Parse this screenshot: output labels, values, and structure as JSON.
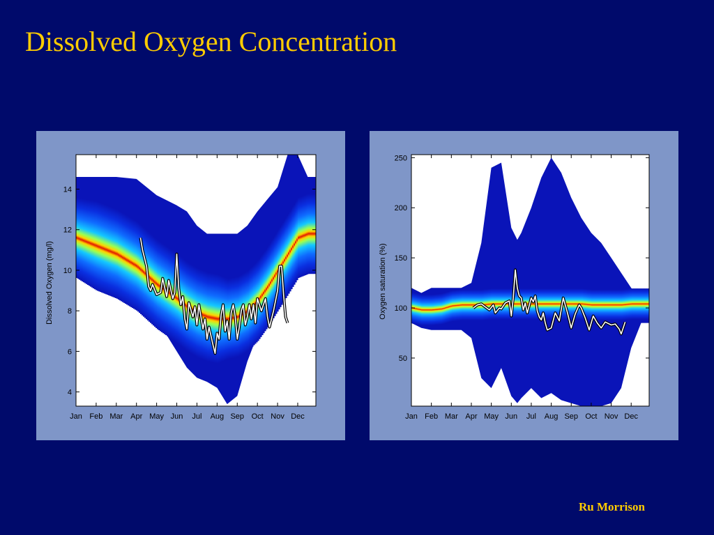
{
  "slide": {
    "title": "Dissolved Oxygen Concentration",
    "author": "Ru Morrison",
    "background_color": "#000a6b",
    "title_color": "#ffcc00",
    "panel_color": "#7f96c8"
  },
  "chart_data": [
    {
      "type": "area",
      "xlabel": "",
      "ylabel": "Dissolved Oxygen (mg/l)",
      "categories": [
        "Jan",
        "Feb",
        "Mar",
        "Apr",
        "May",
        "Jun",
        "Jul",
        "Aug",
        "Sep",
        "Oct",
        "Nov",
        "Dec"
      ],
      "yticks": [
        4,
        6,
        8,
        10,
        12,
        14
      ],
      "ylim": [
        3.3,
        15.7
      ],
      "xlim": [
        1,
        12.9
      ],
      "band_x": [
        1,
        2,
        3,
        4,
        5,
        6,
        6.5,
        7,
        7.5,
        8,
        8.5,
        9,
        9.5,
        10,
        10.5,
        11,
        11.5,
        12,
        12.5,
        12.9
      ],
      "band_upper": [
        14.6,
        14.6,
        14.6,
        14.5,
        13.7,
        13.2,
        12.9,
        12.2,
        11.8,
        11.8,
        11.8,
        11.8,
        12.2,
        12.9,
        13.5,
        14.1,
        15.7,
        15.7,
        14.6,
        14.6
      ],
      "band_lower": [
        10.4,
        10.3,
        9.8,
        9.0,
        7.6,
        6.0,
        5.2,
        4.7,
        4.5,
        4.2,
        3.4,
        3.8,
        5.5,
        6.8,
        7.6,
        8.2,
        8.8,
        10.0,
        10.4,
        10.4
      ],
      "median_y": [
        11.6,
        11.2,
        10.8,
        10.2,
        9.3,
        8.6,
        8.2,
        7.9,
        7.7,
        7.6,
        7.6,
        7.7,
        8.0,
        8.5,
        9.2,
        10.0,
        10.8,
        11.6,
        11.8,
        11.8
      ],
      "halfwidth": [
        0.9,
        1.0,
        1.0,
        1.0,
        1.0,
        1.0,
        1.0,
        1.0,
        1.0,
        1.0,
        0.9,
        0.9,
        0.9,
        0.9,
        0.9,
        0.9,
        0.9,
        0.9,
        0.9,
        0.9
      ],
      "series": [
        {
          "x": [
            4.2,
            4.3,
            4.5,
            4.6,
            4.7,
            4.8,
            5.0,
            5.2,
            5.3,
            5.5,
            5.6,
            5.8,
            5.9,
            6.0,
            6.1,
            6.2,
            6.3,
            6.4,
            6.5,
            6.6,
            6.8,
            6.9,
            7.0,
            7.1,
            7.3,
            7.4,
            7.5,
            7.6,
            7.8,
            7.9,
            8.0,
            8.1,
            8.2,
            8.3,
            8.4,
            8.5,
            8.6,
            8.7,
            8.8,
            8.9,
            9.0,
            9.1,
            9.2,
            9.3,
            9.4,
            9.5,
            9.6,
            9.7,
            9.8,
            9.9,
            10.0,
            10.2,
            10.4,
            10.5,
            10.6,
            10.8,
            11.0,
            11.1,
            11.2,
            11.3,
            11.4,
            11.5
          ],
          "y": [
            11.6,
            11.0,
            10.2,
            9.2,
            9.0,
            9.3,
            8.8,
            8.9,
            9.6,
            8.7,
            9.5,
            8.6,
            8.9,
            10.8,
            9.1,
            8.3,
            8.7,
            7.6,
            7.1,
            8.4,
            7.7,
            8.2,
            7.3,
            8.3,
            7.1,
            7.6,
            6.6,
            7.2,
            6.3,
            5.9,
            6.9,
            6.6,
            7.8,
            8.3,
            7.0,
            7.5,
            6.6,
            7.9,
            8.3,
            7.7,
            6.6,
            7.2,
            8.0,
            8.3,
            7.3,
            7.7,
            8.3,
            7.6,
            8.3,
            7.4,
            8.6,
            8.0,
            8.6,
            7.7,
            7.2,
            8.0,
            9.0,
            10.2,
            10.2,
            8.8,
            7.7,
            7.4
          ]
        }
      ]
    },
    {
      "type": "area",
      "xlabel": "",
      "ylabel": "Oxygen saturation (%)",
      "categories": [
        "Jan",
        "Feb",
        "Mar",
        "Apr",
        "May",
        "Jun",
        "Jul",
        "Aug",
        "Sep",
        "Oct",
        "Nov",
        "Dec"
      ],
      "yticks": [
        50,
        100,
        150,
        200,
        250
      ],
      "ylim": [
        2,
        253
      ],
      "xlim": [
        1,
        12.9
      ],
      "band_x": [
        1,
        1.5,
        2,
        2.5,
        3,
        3.5,
        4,
        4.5,
        5,
        5.5,
        6,
        6.3,
        6.5,
        7,
        7.5,
        8,
        8.5,
        9,
        9.5,
        10,
        10.5,
        11,
        11.5,
        12,
        12.5,
        12.9
      ],
      "band_upper": [
        120,
        115,
        120,
        120,
        120,
        120,
        125,
        165,
        240,
        245,
        180,
        168,
        175,
        200,
        230,
        250,
        235,
        210,
        190,
        175,
        165,
        150,
        135,
        120,
        108,
        108
      ],
      "band_lower": [
        85,
        80,
        78,
        78,
        78,
        78,
        70,
        30,
        20,
        40,
        12,
        5,
        10,
        20,
        10,
        15,
        8,
        5,
        2,
        2,
        2,
        5,
        20,
        60,
        85,
        85
      ],
      "median_y": [
        100,
        98,
        98,
        99,
        102,
        103,
        103,
        103,
        104,
        104,
        104,
        104,
        104,
        104,
        104,
        104,
        104,
        104,
        104,
        103,
        103,
        103,
        103,
        104,
        104,
        104
      ],
      "halfwidth": [
        7,
        7,
        7,
        7,
        7,
        7,
        7,
        7,
        7,
        7,
        7,
        7,
        7,
        7,
        7,
        7,
        7,
        7,
        7,
        7,
        7,
        7,
        7,
        7,
        7,
        7
      ],
      "series": [
        {
          "x": [
            4.1,
            4.3,
            4.5,
            4.7,
            4.9,
            5.1,
            5.2,
            5.4,
            5.5,
            5.7,
            5.9,
            6.0,
            6.1,
            6.2,
            6.3,
            6.4,
            6.5,
            6.6,
            6.7,
            6.8,
            7.0,
            7.1,
            7.2,
            7.3,
            7.4,
            7.5,
            7.6,
            7.7,
            7.8,
            8.0,
            8.2,
            8.4,
            8.6,
            8.8,
            9.0,
            9.2,
            9.4,
            9.5,
            9.7,
            9.9,
            10.1,
            10.3,
            10.5,
            10.7,
            11.0,
            11.2,
            11.4,
            11.5,
            11.7
          ],
          "y": [
            100,
            103,
            104,
            101,
            98,
            103,
            95,
            100,
            99,
            105,
            107,
            92,
            110,
            138,
            120,
            112,
            110,
            98,
            105,
            95,
            110,
            106,
            112,
            97,
            91,
            88,
            95,
            85,
            78,
            80,
            95,
            87,
            110,
            96,
            80,
            94,
            103,
            100,
            90,
            78,
            92,
            85,
            80,
            86,
            83,
            84,
            79,
            74,
            86
          ]
        }
      ]
    }
  ]
}
